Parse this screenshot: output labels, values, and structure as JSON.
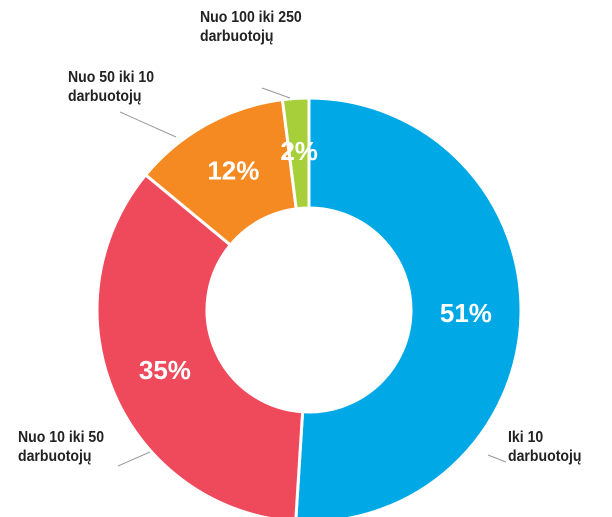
{
  "chart_data": {
    "type": "donut",
    "categories": [
      "Iki 10 darbuotojų",
      "Nuo 10 iki 50 darbuotojų",
      "Nuo 50 iki 10 darbuotojų",
      "Nuo 100 iki 250 darbuotojų"
    ],
    "values": [
      51,
      35,
      12,
      2
    ],
    "value_labels": [
      "51%",
      "35%",
      "12%",
      "2%"
    ],
    "colors": [
      "#00a9e6",
      "#ee4a5c",
      "#f58a22",
      "#a6cf3a"
    ]
  }
}
